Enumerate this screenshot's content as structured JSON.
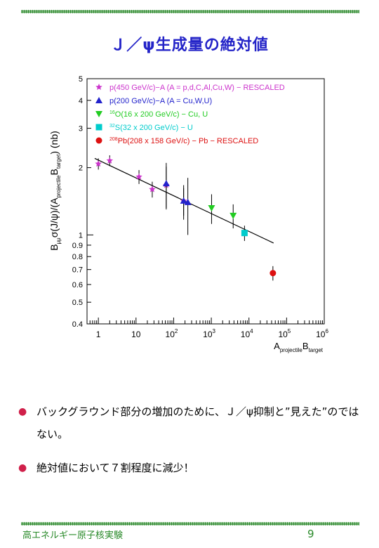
{
  "slide": {
    "title": "Ｊ／ψ生成量の絶対値",
    "bullets": [
      "バックグラウンド部分の増加のために、Ｊ／ψ抑制と”見えた”のではない。",
      "絶対値において７割程度に減少！"
    ],
    "footer": "高エネルギー原子核実験",
    "page_number": "9"
  },
  "chart_data": {
    "type": "scatter",
    "xscale": "log",
    "yscale": "log",
    "xlim": [
      0.5,
      1000000
    ],
    "ylim": [
      0.4,
      5
    ],
    "xlabel": "A_projectile B_target",
    "ylabel": "B_μμ σ(J/ψ) / (A_projectile B_target) (nb)",
    "x_tick_labels": [
      "1",
      "10",
      "10^2",
      "10^3",
      "10^4",
      "10^5",
      "10^6"
    ],
    "y_tick_labels": [
      "0.4",
      "0.5",
      "0.6",
      "0.7",
      "0.8",
      "0.9",
      "1",
      "2",
      "3",
      "4",
      "5"
    ],
    "legend_position": "top-left",
    "series": [
      {
        "name": "p(450 GeV/c)−A (A = p,d,C,Al,Cu,W) − RESCALED",
        "color": "#cc33cc",
        "marker": "star",
        "points": [
          {
            "x": 1,
            "y": 2.08,
            "err": 0.12
          },
          {
            "x": 2,
            "y": 2.15,
            "err": 0.12
          },
          {
            "x": 12,
            "y": 1.82,
            "err": 0.13
          },
          {
            "x": 27,
            "y": 1.6,
            "err": 0.13
          },
          {
            "x": 63.5,
            "y": 1.67,
            "err": 0.35
          },
          {
            "x": 184,
            "y": 1.42,
            "err": 0.2
          }
        ]
      },
      {
        "name": "p(200 GeV/c)−A (A = Cu,W,U)",
        "color": "#2222cc",
        "marker": "triangle-up",
        "points": [
          {
            "x": 63.5,
            "y": 1.7,
            "err": 0.4
          },
          {
            "x": 184,
            "y": 1.42,
            "err": 0.25
          },
          {
            "x": 238,
            "y": 1.4,
            "err": 0.4
          }
        ]
      },
      {
        "name": "16O(16 x 200 GeV/c) − Cu, U",
        "color": "#22cc22",
        "marker": "triangle-down",
        "points": [
          {
            "x": 1016,
            "y": 1.32,
            "err": 0.2
          },
          {
            "x": 3808,
            "y": 1.22,
            "err": 0.15
          }
        ]
      },
      {
        "name": "32S(32 x 200 GeV/c) − U",
        "color": "#00cccc",
        "marker": "square",
        "points": [
          {
            "x": 7616,
            "y": 1.02,
            "err": 0.08
          }
        ]
      },
      {
        "name": "208Pb(208 x 158 GeV/c) − Pb − RESCALED",
        "color": "#dd1111",
        "marker": "circle",
        "points": [
          {
            "x": 43264,
            "y": 0.675,
            "err": 0.05
          }
        ]
      }
    ],
    "fit_line": {
      "x": [
        0.8,
        45000
      ],
      "y": [
        2.2,
        0.92
      ]
    }
  }
}
